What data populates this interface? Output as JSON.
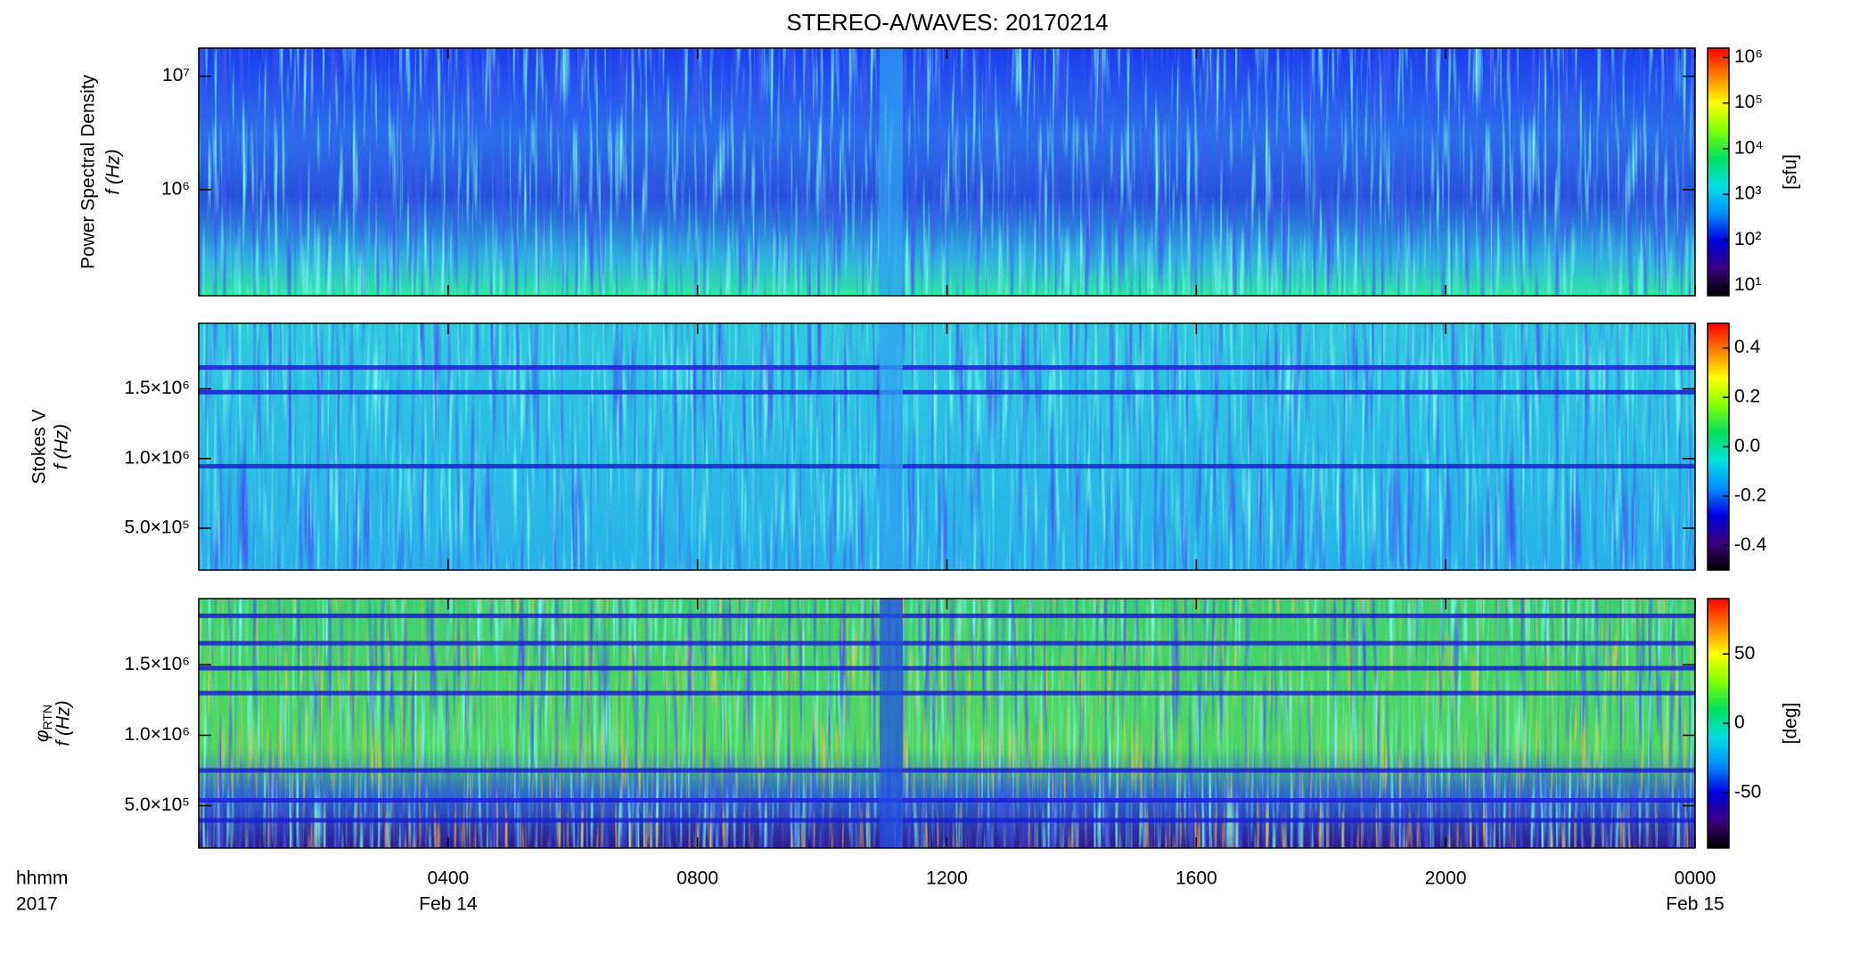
{
  "chart_data": [
    {
      "type": "spectrogram",
      "title": "STEREO-A/WAVES: 20170214",
      "ylabel": [
        "Power Spectral Density",
        "f (Hz)"
      ],
      "yscale": "log",
      "ylim": [
        116000,
        17700000
      ],
      "yticks": [
        {
          "value": 1000000,
          "label": "10⁶"
        },
        {
          "value": 10000000,
          "label": "10⁷"
        }
      ],
      "xlim": [
        0,
        24
      ],
      "xticks": [
        4,
        8,
        12,
        16,
        20,
        24
      ],
      "colorbar": {
        "scale": "log",
        "lim": [
          6,
          1600000
        ],
        "label": "[sfu]",
        "ticks": [
          {
            "value": 10,
            "label": "10¹"
          },
          {
            "value": 100,
            "label": "10²"
          },
          {
            "value": 1000,
            "label": "10³"
          },
          {
            "value": 10000,
            "label": "10⁴"
          },
          {
            "value": 100000,
            "label": "10⁵"
          },
          {
            "value": 1000000,
            "label": "10⁶"
          }
        ]
      },
      "colorscale": [
        "#000000",
        "#3a0080",
        "#0000e0",
        "#0090ff",
        "#00e0e0",
        "#00e060",
        "#80ff00",
        "#ffff00",
        "#ff8000",
        "#ff0000"
      ]
    },
    {
      "type": "spectrogram",
      "ylabel": [
        "Stokes V",
        "f (Hz)"
      ],
      "yscale": "linear",
      "ylim": [
        200000,
        1970000
      ],
      "yticks": [
        {
          "value": 500000,
          "label": "5.0×10⁵"
        },
        {
          "value": 1000000,
          "label": "1.0×10⁶"
        },
        {
          "value": 1500000,
          "label": "1.5×10⁶"
        }
      ],
      "xlim": [
        0,
        24
      ],
      "xticks": [
        4,
        8,
        12,
        16,
        20,
        24
      ],
      "colorbar": {
        "scale": "linear",
        "lim": [
          -0.5,
          0.5
        ],
        "ticks": [
          {
            "value": -0.4,
            "label": "-0.4"
          },
          {
            "value": -0.2,
            "label": "-0.2"
          },
          {
            "value": 0,
            "label": "0.0"
          },
          {
            "value": 0.2,
            "label": "0.2"
          },
          {
            "value": 0.4,
            "label": "0.4"
          }
        ]
      },
      "colorscale": [
        "#000000",
        "#3a0080",
        "#0000e0",
        "#0090ff",
        "#00e0e0",
        "#00e060",
        "#80ff00",
        "#ffff00",
        "#ff8000",
        "#ff0000"
      ]
    },
    {
      "type": "spectrogram",
      "ylabel_symbol": "φ",
      "ylabel_sub": "RTN",
      "ylabel": [
        "f (Hz)"
      ],
      "yscale": "linear",
      "ylim": [
        200000,
        1970000
      ],
      "yticks": [
        {
          "value": 500000,
          "label": "5.0×10⁵"
        },
        {
          "value": 1000000,
          "label": "1.0×10⁶"
        },
        {
          "value": 1500000,
          "label": "1.5×10⁶"
        }
      ],
      "xlim": [
        0,
        24
      ],
      "xticks": [
        {
          "value": 4,
          "label": "0400"
        },
        {
          "value": 8,
          "label": "0800"
        },
        {
          "value": 12,
          "label": "1200"
        },
        {
          "value": 16,
          "label": "1600"
        },
        {
          "value": 20,
          "label": "2000"
        },
        {
          "value": 24,
          "label": "0000"
        }
      ],
      "xlabel": [
        "hhmm",
        "2017"
      ],
      "x_date_labels": [
        {
          "value": 4,
          "label": "Feb 14"
        },
        {
          "value": 24,
          "label": "Feb 15"
        }
      ],
      "colorbar": {
        "scale": "linear",
        "lim": [
          -90,
          90
        ],
        "label": "[deg]",
        "ticks": [
          {
            "value": -50,
            "label": "-50"
          },
          {
            "value": 0,
            "label": "0"
          },
          {
            "value": 50,
            "label": "50"
          }
        ]
      },
      "colorscale": [
        "#000000",
        "#3a0080",
        "#0000e0",
        "#0090ff",
        "#00e0e0",
        "#00e060",
        "#80ff00",
        "#ffff00",
        "#ff8000",
        "#ff0000"
      ]
    }
  ]
}
